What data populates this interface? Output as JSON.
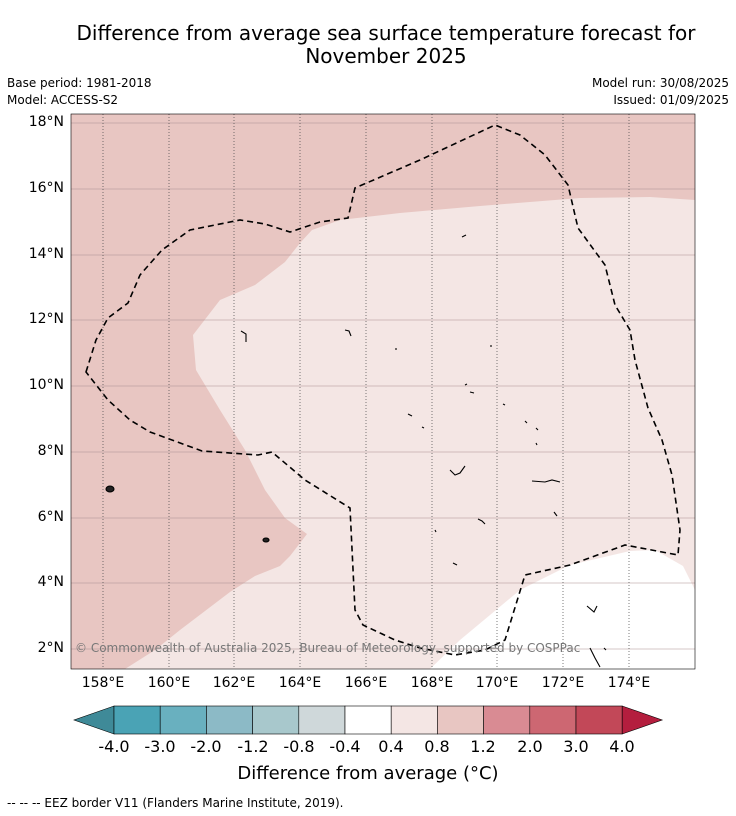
{
  "title_line1": "Difference from average sea surface temperature forecast for",
  "title_line2": "November 2025",
  "meta_left": {
    "base_period": "Base period: 1981-2018",
    "model": "Model: ACCESS-S2"
  },
  "meta_right": {
    "model_run": "Model run: 30/08/2025",
    "issued": "Issued: 01/09/2025"
  },
  "map": {
    "lat_labels": [
      "18°N",
      "16°N",
      "14°N",
      "12°N",
      "10°N",
      "8°N",
      "6°N",
      "4°N",
      "2°N"
    ],
    "lon_labels": [
      "158°E",
      "160°E",
      "162°E",
      "164°E",
      "166°E",
      "168°E",
      "170°E",
      "172°E",
      "174°E"
    ],
    "copyright": "© Commonwealth of Australia 2025, Bureau of Meteorology, supported by COSPPac",
    "fill_colors": {
      "zone_0.8_1.2": "#e8c6c2",
      "zone_0.4_0.8": "#f4e6e4",
      "zone_-0.4_0.4": "#ffffff"
    }
  },
  "colorbar": {
    "ticks": [
      "-4.0",
      "-3.0",
      "-2.0",
      "-1.2",
      "-0.8",
      "-0.4",
      "0.4",
      "0.8",
      "1.2",
      "2.0",
      "3.0",
      "4.0"
    ],
    "colors": [
      "#3f8a98",
      "#4aa3b5",
      "#69b0bf",
      "#8cbac6",
      "#a8c8cc",
      "#cfd8da",
      "#ffffff",
      "#f4e6e4",
      "#e8c6c2",
      "#d98b93",
      "#cd6772",
      "#c24858",
      "#b41e3e"
    ],
    "label": "Difference from average (°C)"
  },
  "footer": "--  --  -- EEZ border V11 (Flanders Marine Institute, 2019)."
}
